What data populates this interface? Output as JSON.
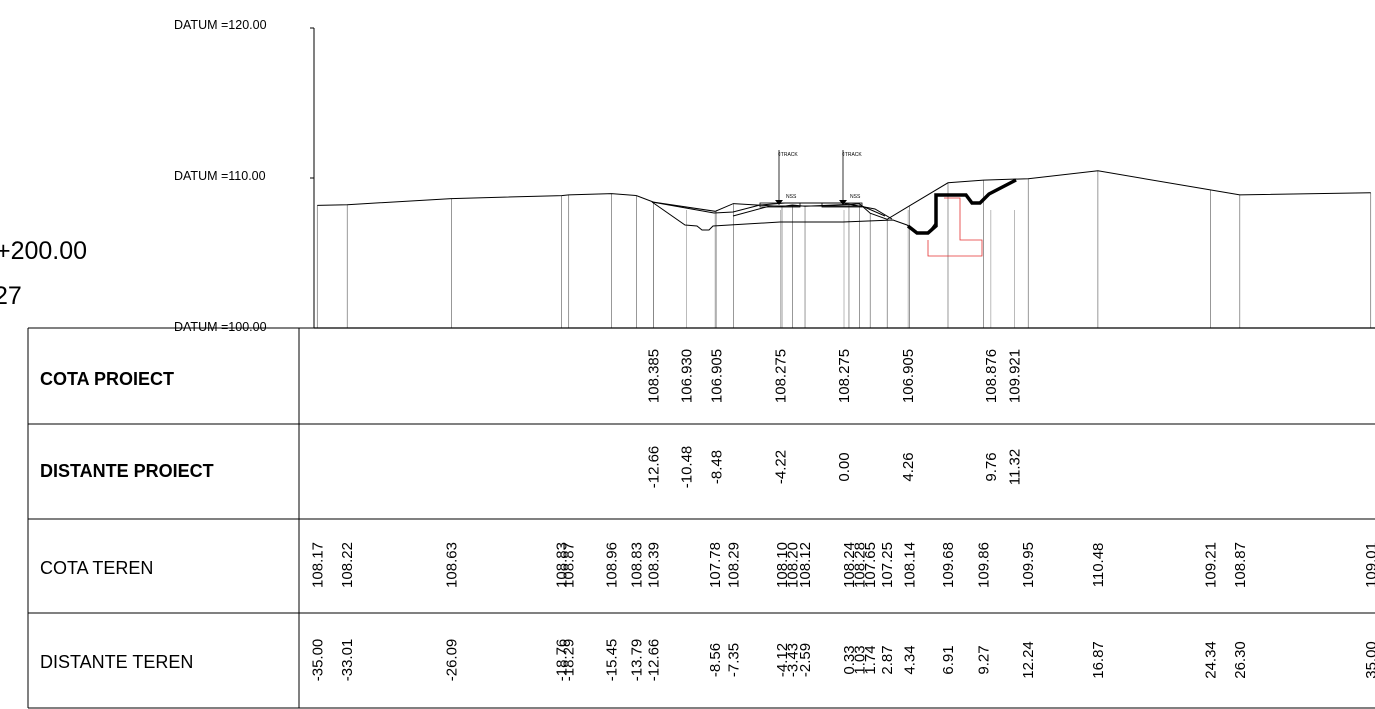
{
  "title_block": {
    "chainage": "+200.00",
    "number": "27"
  },
  "datums": [
    {
      "label": "DATUM =120.00",
      "value": 120
    },
    {
      "label": "DATUM =110.00",
      "value": 110
    },
    {
      "label": "DATUM =100.00",
      "value": 100
    }
  ],
  "annotations": {
    "track_left": "¢TRACK",
    "track_right": "¢TRACK",
    "nss_left": "NSS",
    "nss_right": "NSS"
  },
  "table": {
    "rows": [
      {
        "label": "COTA PROIECT",
        "bold": true
      },
      {
        "label": "DISTANTE PROIECT",
        "bold": true
      },
      {
        "label": "COTA TEREN",
        "bold": false
      },
      {
        "label": "DISTANTE TEREN",
        "bold": false
      }
    ]
  },
  "design_points": [
    {
      "dist": "-12.66",
      "elev": "108.385",
      "d": -12.66
    },
    {
      "dist": "-10.48",
      "elev": "106.930",
      "d": -10.48
    },
    {
      "dist": "-8.48",
      "elev": "106.905",
      "d": -8.48
    },
    {
      "dist": "-4.22",
      "elev": "108.275",
      "d": -4.22
    },
    {
      "dist": "0.00",
      "elev": "108.275",
      "d": 0.0
    },
    {
      "dist": "4.26",
      "elev": "106.905",
      "d": 4.26
    },
    {
      "dist": "9.76",
      "elev": "108.876",
      "d": 9.76
    },
    {
      "dist": "11.32",
      "elev": "109.921",
      "d": 11.32
    }
  ],
  "ground_points": [
    {
      "dist": "-35.00",
      "elev": "108.17",
      "d": -35.0,
      "e": 108.17
    },
    {
      "dist": "-33.01",
      "elev": "108.22",
      "d": -33.01,
      "e": 108.22
    },
    {
      "dist": "-26.09",
      "elev": "108.63",
      "d": -26.09,
      "e": 108.63
    },
    {
      "dist": "-18.76",
      "elev": "108.83",
      "d": -18.76,
      "e": 108.83
    },
    {
      "dist": "-18.29",
      "elev": "108.87",
      "d": -18.29,
      "e": 108.87
    },
    {
      "dist": "-15.45",
      "elev": "108.96",
      "d": -15.45,
      "e": 108.96
    },
    {
      "dist": "-13.79",
      "elev": "108.83",
      "d": -13.79,
      "e": 108.83
    },
    {
      "dist": "-12.66",
      "elev": "108.39",
      "d": -12.66,
      "e": 108.39
    },
    {
      "dist": "-8.56",
      "elev": "107.78",
      "d": -8.56,
      "e": 107.78
    },
    {
      "dist": "-7.35",
      "elev": "108.29",
      "d": -7.35,
      "e": 108.29
    },
    {
      "dist": "-4.12",
      "elev": "108.10",
      "d": -4.12,
      "e": 108.1
    },
    {
      "dist": "-3.43",
      "elev": "108.20",
      "d": -3.43,
      "e": 108.2
    },
    {
      "dist": "-2.59",
      "elev": "108.12",
      "d": -2.59,
      "e": 108.12
    },
    {
      "dist": "0.33",
      "elev": "108.24",
      "d": 0.33,
      "e": 108.24
    },
    {
      "dist": "1.03",
      "elev": "108.28",
      "d": 1.03,
      "e": 108.28
    },
    {
      "dist": "1.74",
      "elev": "107.65",
      "d": 1.74,
      "e": 107.65
    },
    {
      "dist": "2.87",
      "elev": "107.25",
      "d": 2.87,
      "e": 107.25
    },
    {
      "dist": "4.34",
      "elev": "108.14",
      "d": 4.34,
      "e": 108.14
    },
    {
      "dist": "6.91",
      "elev": "109.68",
      "d": 6.91,
      "e": 109.68
    },
    {
      "dist": "9.27",
      "elev": "109.86",
      "d": 9.27,
      "e": 109.86
    },
    {
      "dist": "12.24",
      "elev": "109.95",
      "d": 12.24,
      "e": 109.95
    },
    {
      "dist": "16.87",
      "elev": "110.48",
      "d": 16.87,
      "e": 110.48
    },
    {
      "dist": "24.34",
      "elev": "109.21",
      "d": 24.34,
      "e": 109.21
    },
    {
      "dist": "26.30",
      "elev": "108.87",
      "d": 26.3,
      "e": 108.87
    },
    {
      "dist": "35.00",
      "elev": "109.01",
      "d": 35.0,
      "e": 109.01
    }
  ]
}
